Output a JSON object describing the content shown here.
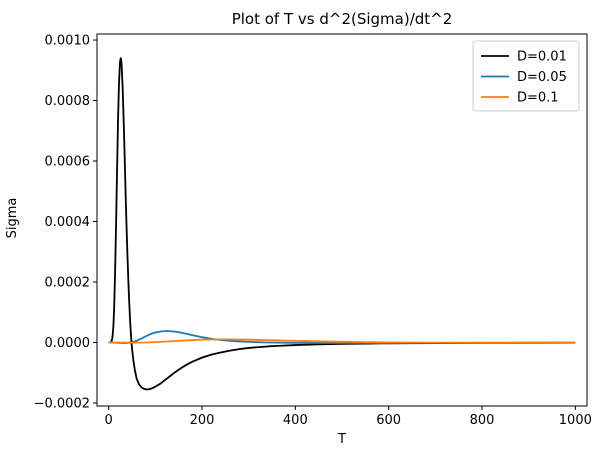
{
  "chart_data": {
    "type": "line",
    "title": "Plot of T vs d^2(Sigma)/dt^2",
    "xlabel": "T",
    "ylabel": "Sigma",
    "xlim": [
      -25,
      1025
    ],
    "ylim": [
      -0.00021,
      0.00102
    ],
    "xticks": [
      0,
      200,
      400,
      600,
      800,
      1000
    ],
    "yticks": [
      -0.0002,
      0,
      0.0002,
      0.0004,
      0.0006,
      0.0008,
      0.001
    ],
    "xtick_labels": [
      "0",
      "200",
      "400",
      "600",
      "800",
      "1000"
    ],
    "ytick_labels": [
      "−0.0002",
      "0.0000",
      "0.0002",
      "0.0004",
      "0.0006",
      "0.0008",
      "0.0010"
    ],
    "grid": false,
    "legend_position": "top-right",
    "series": [
      {
        "name": "D=0.01",
        "color": "#000000",
        "points": [
          [
            0,
            0
          ],
          [
            2,
            2e-07
          ],
          [
            4,
            8e-07
          ],
          [
            6,
            4e-06
          ],
          [
            8,
            1.5e-05
          ],
          [
            10,
            5e-05
          ],
          [
            12,
            0.000125
          ],
          [
            14,
            0.00025
          ],
          [
            16,
            0.0004
          ],
          [
            18,
            0.00057
          ],
          [
            20,
            0.00073
          ],
          [
            22,
            0.00085
          ],
          [
            24,
            0.00092
          ],
          [
            25,
            0.000935
          ],
          [
            26,
            0.00094
          ],
          [
            27,
            0.000932
          ],
          [
            28,
            0.00091
          ],
          [
            30,
            0.00084
          ],
          [
            32,
            0.00074
          ],
          [
            34,
            0.00063
          ],
          [
            36,
            0.00051
          ],
          [
            38,
            0.0004
          ],
          [
            40,
            0.0003
          ],
          [
            42,
            0.00021
          ],
          [
            44,
            0.000135
          ],
          [
            46,
            7e-05
          ],
          [
            48,
            2e-05
          ],
          [
            50,
            -2e-05
          ],
          [
            53,
            -6e-05
          ],
          [
            56,
            -9e-05
          ],
          [
            60,
            -0.00012
          ],
          [
            65,
            -0.000138
          ],
          [
            70,
            -0.000148
          ],
          [
            75,
            -0.000153
          ],
          [
            80,
            -0.000155
          ],
          [
            85,
            -0.000155
          ],
          [
            90,
            -0.000153
          ],
          [
            95,
            -0.00015
          ],
          [
            100,
            -0.000146
          ],
          [
            110,
            -0.000137
          ],
          [
            120,
            -0.000125
          ],
          [
            130,
            -0.000113
          ],
          [
            140,
            -0.000101
          ],
          [
            150,
            -9e-05
          ],
          [
            160,
            -8e-05
          ],
          [
            170,
            -7.1e-05
          ],
          [
            180,
            -6.3e-05
          ],
          [
            200,
            -5e-05
          ],
          [
            220,
            -4e-05
          ],
          [
            240,
            -3.3e-05
          ],
          [
            260,
            -2.7e-05
          ],
          [
            280,
            -2.2e-05
          ],
          [
            300,
            -1.8e-05
          ],
          [
            350,
            -1.2e-05
          ],
          [
            400,
            -8.5e-06
          ],
          [
            450,
            -6e-06
          ],
          [
            500,
            -4.5e-06
          ],
          [
            550,
            -3.5e-06
          ],
          [
            600,
            -2.8e-06
          ],
          [
            700,
            -1.9e-06
          ],
          [
            800,
            -1.4e-06
          ],
          [
            900,
            -1.1e-06
          ],
          [
            1000,
            -9e-07
          ]
        ]
      },
      {
        "name": "D=0.05",
        "color": "#1f77b4",
        "points": [
          [
            0,
            0
          ],
          [
            10,
            -3e-07
          ],
          [
            20,
            -1.2e-06
          ],
          [
            30,
            -2e-06
          ],
          [
            40,
            -1.5e-06
          ],
          [
            50,
            1e-06
          ],
          [
            60,
            6e-06
          ],
          [
            70,
            1.3e-05
          ],
          [
            80,
            2.1e-05
          ],
          [
            90,
            2.8e-05
          ],
          [
            100,
            3.3e-05
          ],
          [
            110,
            3.6e-05
          ],
          [
            120,
            3.75e-05
          ],
          [
            130,
            3.75e-05
          ],
          [
            140,
            3.62e-05
          ],
          [
            150,
            3.4e-05
          ],
          [
            160,
            3.1e-05
          ],
          [
            170,
            2.75e-05
          ],
          [
            180,
            2.4e-05
          ],
          [
            190,
            2.05e-05
          ],
          [
            200,
            1.75e-05
          ],
          [
            220,
            1.25e-05
          ],
          [
            240,
            8.5e-06
          ],
          [
            260,
            5.5e-06
          ],
          [
            280,
            3.5e-06
          ],
          [
            300,
            2e-06
          ],
          [
            330,
            5e-07
          ],
          [
            360,
            -5e-07
          ],
          [
            400,
            -1.2e-06
          ],
          [
            450,
            -1.6e-06
          ],
          [
            500,
            -1.7e-06
          ],
          [
            600,
            -1.5e-06
          ],
          [
            700,
            -1.2e-06
          ],
          [
            800,
            -9e-07
          ],
          [
            900,
            -7e-07
          ],
          [
            1000,
            -5e-07
          ]
        ]
      },
      {
        "name": "D=0.1",
        "color": "#ff7f0e",
        "points": [
          [
            0,
            0
          ],
          [
            20,
            -2e-07
          ],
          [
            40,
            -5e-07
          ],
          [
            60,
            -5e-07
          ],
          [
            80,
            0
          ],
          [
            100,
            1.2e-06
          ],
          [
            120,
            2.8e-06
          ],
          [
            140,
            4.5e-06
          ],
          [
            160,
            6.3e-06
          ],
          [
            180,
            8e-06
          ],
          [
            200,
            9.3e-06
          ],
          [
            220,
            1.01e-05
          ],
          [
            240,
            1.04e-05
          ],
          [
            260,
            1.03e-05
          ],
          [
            280,
            9.9e-06
          ],
          [
            300,
            9.3e-06
          ],
          [
            340,
            7.8e-06
          ],
          [
            380,
            6.2e-06
          ],
          [
            420,
            4.7e-06
          ],
          [
            460,
            3.4e-06
          ],
          [
            500,
            2.3e-06
          ],
          [
            550,
            1.2e-06
          ],
          [
            600,
            4e-07
          ],
          [
            650,
            -1e-07
          ],
          [
            700,
            -4e-07
          ],
          [
            800,
            -6e-07
          ],
          [
            900,
            -6e-07
          ],
          [
            1000,
            -5e-07
          ]
        ]
      }
    ]
  }
}
